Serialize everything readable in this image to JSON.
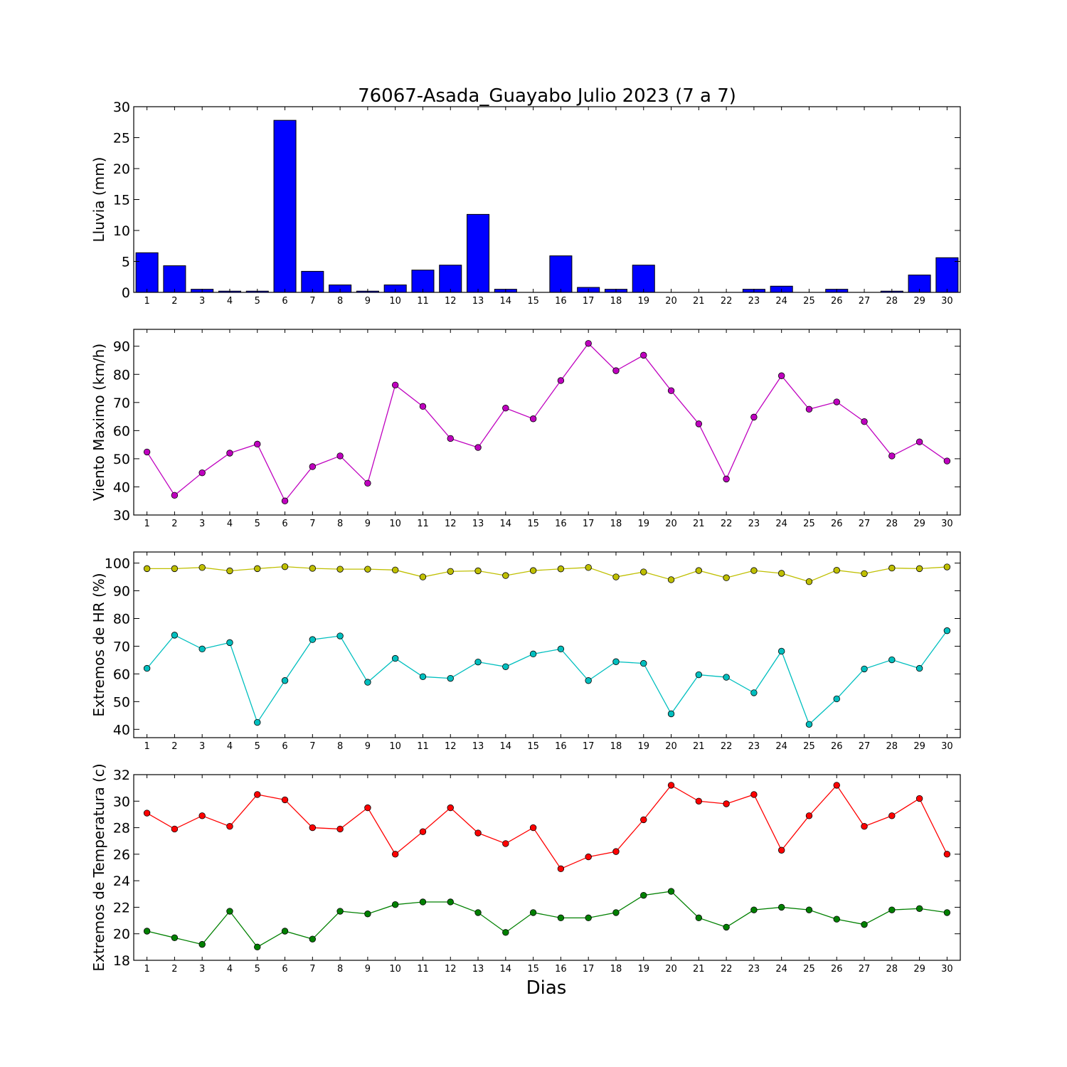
{
  "figure": {
    "title": "76067-Asada_Guayabo Julio 2023  (7 a 7)",
    "xlabel": "Dias"
  },
  "chart_data": [
    {
      "id": "lluvia",
      "type": "bar",
      "ylabel": "Lluvia (mm)",
      "ylim": [
        0,
        30
      ],
      "yticks": [
        0,
        5,
        10,
        15,
        20,
        25,
        30
      ],
      "categories": [
        "1",
        "2",
        "3",
        "4",
        "5",
        "6",
        "7",
        "8",
        "9",
        "10",
        "11",
        "12",
        "13",
        "14",
        "15",
        "16",
        "17",
        "18",
        "19",
        "20",
        "21",
        "22",
        "23",
        "24",
        "25",
        "26",
        "27",
        "28",
        "29",
        "30"
      ],
      "series": [
        {
          "color": "#0000ff",
          "values": [
            6.4,
            4.3,
            0.5,
            0.2,
            0.2,
            27.8,
            3.4,
            1.2,
            0.2,
            1.2,
            3.6,
            4.4,
            12.6,
            0.5,
            0.0,
            5.9,
            0.8,
            0.5,
            4.4,
            0.0,
            0.0,
            0.0,
            0.5,
            1.0,
            0.0,
            0.5,
            0.0,
            0.2,
            2.8,
            5.6
          ]
        }
      ]
    },
    {
      "id": "viento",
      "type": "line",
      "ylabel": "Viento Maximo (km/h)",
      "ylim": [
        30,
        96
      ],
      "yticks": [
        30,
        40,
        50,
        60,
        70,
        80,
        90
      ],
      "categories": [
        "1",
        "2",
        "3",
        "4",
        "5",
        "6",
        "7",
        "8",
        "9",
        "10",
        "11",
        "12",
        "13",
        "14",
        "15",
        "16",
        "17",
        "18",
        "19",
        "20",
        "21",
        "22",
        "23",
        "24",
        "25",
        "26",
        "27",
        "28",
        "29",
        "30"
      ],
      "series": [
        {
          "color": "#bf00bf",
          "values": [
            52.4,
            37.0,
            45.0,
            52.0,
            55.2,
            35.0,
            47.2,
            51.0,
            41.3,
            76.2,
            68.6,
            57.2,
            54.0,
            68.0,
            64.2,
            77.8,
            91.0,
            81.3,
            86.8,
            74.2,
            62.4,
            42.8,
            64.8,
            79.5,
            67.6,
            70.2,
            63.2,
            51.0,
            56.0,
            49.2
          ]
        }
      ]
    },
    {
      "id": "hr",
      "type": "line",
      "ylabel": "Extremos de HR (%)",
      "ylim": [
        37,
        104
      ],
      "yticks": [
        40,
        50,
        60,
        70,
        80,
        90,
        100
      ],
      "categories": [
        "1",
        "2",
        "3",
        "4",
        "5",
        "6",
        "7",
        "8",
        "9",
        "10",
        "11",
        "12",
        "13",
        "14",
        "15",
        "16",
        "17",
        "18",
        "19",
        "20",
        "21",
        "22",
        "23",
        "24",
        "25",
        "26",
        "27",
        "28",
        "29",
        "30"
      ],
      "series": [
        {
          "color": "#bfbf00",
          "values": [
            98.0,
            98.0,
            98.4,
            97.2,
            98.0,
            98.7,
            98.1,
            97.8,
            97.8,
            97.5,
            95.0,
            97.0,
            97.2,
            95.5,
            97.3,
            97.9,
            98.4,
            95.0,
            96.8,
            94.0,
            97.3,
            94.7,
            97.3,
            96.3,
            93.3,
            97.4,
            96.2,
            98.2,
            98.0,
            98.6
          ]
        },
        {
          "color": "#00bfbf",
          "values": [
            62.0,
            74.0,
            69.0,
            71.3,
            42.5,
            57.6,
            72.4,
            73.7,
            57.0,
            65.6,
            59.0,
            58.4,
            64.3,
            62.6,
            67.2,
            69.0,
            57.6,
            64.4,
            63.8,
            45.6,
            59.7,
            58.8,
            53.2,
            68.2,
            41.8,
            51.0,
            61.8,
            65.1,
            62.0,
            75.6
          ]
        }
      ]
    },
    {
      "id": "temp",
      "type": "line",
      "ylabel": "Extremos de Temperatura (c)",
      "ylim": [
        18,
        32
      ],
      "yticks": [
        18,
        20,
        22,
        24,
        26,
        28,
        30,
        32
      ],
      "categories": [
        "1",
        "2",
        "3",
        "4",
        "5",
        "6",
        "7",
        "8",
        "9",
        "10",
        "11",
        "12",
        "13",
        "14",
        "15",
        "16",
        "17",
        "18",
        "19",
        "20",
        "21",
        "22",
        "23",
        "24",
        "25",
        "26",
        "27",
        "28",
        "29",
        "30"
      ],
      "series": [
        {
          "color": "#ff0000",
          "values": [
            29.1,
            27.9,
            28.9,
            28.1,
            30.5,
            30.1,
            28.0,
            27.9,
            29.5,
            26.0,
            27.7,
            29.5,
            27.6,
            26.8,
            28.0,
            24.9,
            25.8,
            26.2,
            28.6,
            31.2,
            30.0,
            29.8,
            30.5,
            26.3,
            28.9,
            31.2,
            28.1,
            28.9,
            30.2,
            26.0
          ]
        },
        {
          "color": "#008000",
          "values": [
            20.2,
            19.7,
            19.2,
            21.7,
            19.0,
            20.2,
            19.6,
            21.7,
            21.5,
            22.2,
            22.4,
            22.4,
            21.6,
            20.1,
            21.6,
            21.2,
            21.2,
            21.6,
            22.9,
            23.2,
            21.2,
            20.5,
            21.8,
            22.0,
            21.8,
            21.1,
            20.7,
            21.8,
            21.9,
            21.6
          ]
        }
      ]
    }
  ]
}
